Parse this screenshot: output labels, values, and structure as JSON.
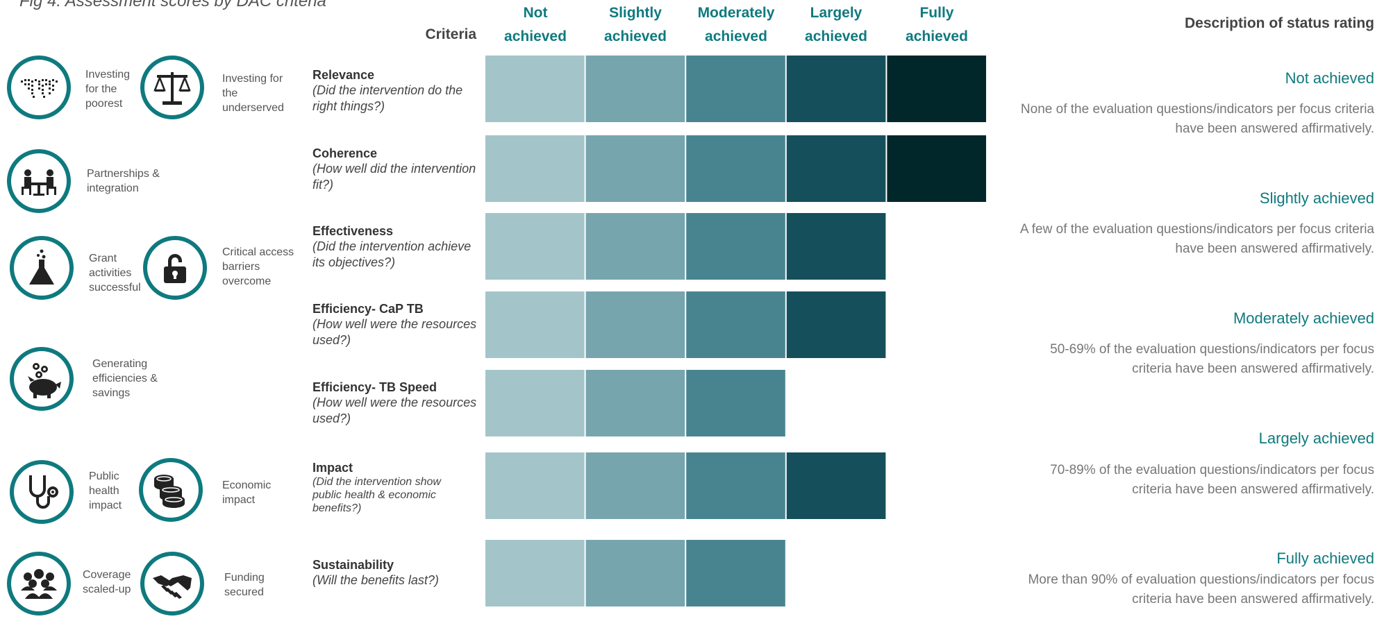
{
  "figure_title": "Fig 4: Assessment scores by DAC criteria",
  "criteria_header": "Criteria",
  "levels": [
    {
      "line1": "Not",
      "line2": "achieved"
    },
    {
      "line1": "Slightly",
      "line2": "achieved"
    },
    {
      "line1": "Moderately",
      "line2": "achieved"
    },
    {
      "line1": "Largely",
      "line2": "achieved"
    },
    {
      "line1": "Fully",
      "line2": "achieved"
    }
  ],
  "level_colors": [
    "#a3c5c9",
    "#77a5ae",
    "#488490",
    "#164f5c",
    "#02272a"
  ],
  "icons": [
    {
      "name": "world-map-icon",
      "label": "Investing for the poorest"
    },
    {
      "name": "scales-icon",
      "label": "Investing for the underserved"
    },
    {
      "name": "meeting-table-icon",
      "label": "Partnerships & integration"
    },
    {
      "name": "flask-icon",
      "label": "Grant activities successful"
    },
    {
      "name": "unlocked-padlock-icon",
      "label": "Critical access barriers overcome"
    },
    {
      "name": "piggy-bank-icon",
      "label": "Generating efficiencies & savings"
    },
    {
      "name": "stethoscope-icon",
      "label": "Public health impact"
    },
    {
      "name": "coins-icon",
      "label": "Economic impact"
    },
    {
      "name": "people-group-icon",
      "label": "Coverage scaled-up"
    },
    {
      "name": "handshake-icon",
      "label": "Funding secured"
    }
  ],
  "chart_data": {
    "type": "bar",
    "title": "",
    "xlabel": "",
    "ylabel": "",
    "categories": [
      {
        "name": "Relevance",
        "question": "(Did the intervention do the right things?)"
      },
      {
        "name": "Coherence",
        "question": "(How well did the intervention fit?)"
      },
      {
        "name": "Effectiveness",
        "question": "(Did the intervention achieve its objectives?)"
      },
      {
        "name": "Efficiency- CaP TB",
        "question": "(How well were the resources used?)"
      },
      {
        "name": "Efficiency- TB Speed",
        "question": "(How well were the resources used?)"
      },
      {
        "name": "Impact",
        "question": "(Did the intervention show public health & economic benefits?)"
      },
      {
        "name": "Sustainability",
        "question": "(Will the benefits last?)"
      }
    ],
    "values": [
      5,
      5,
      4,
      4,
      3,
      4,
      3
    ],
    "scale": [
      "Not achieved",
      "Slightly achieved",
      "Moderately achieved",
      "Largely achieved",
      "Fully achieved"
    ],
    "ylim": [
      0,
      5
    ]
  },
  "description": {
    "title": "Description of status rating",
    "items": [
      {
        "name": "Not achieved",
        "text": "None of the evaluation questions/indicators per focus criteria have been answered affirmatively."
      },
      {
        "name": "Slightly achieved",
        "text": "A few of the evaluation questions/indicators per focus criteria have been answered affirmatively."
      },
      {
        "name": "Moderately achieved",
        "text": "50-69%  of the evaluation questions/indicators per focus criteria have been answered affirmatively."
      },
      {
        "name": "Largely achieved",
        "text": "70-89% of the evaluation questions/indicators per focus criteria have been answered affirmatively."
      },
      {
        "name": "Fully  achieved",
        "text": "More than 90% of evaluation questions/indicators per focus criteria have been answered affirmatively."
      }
    ]
  }
}
